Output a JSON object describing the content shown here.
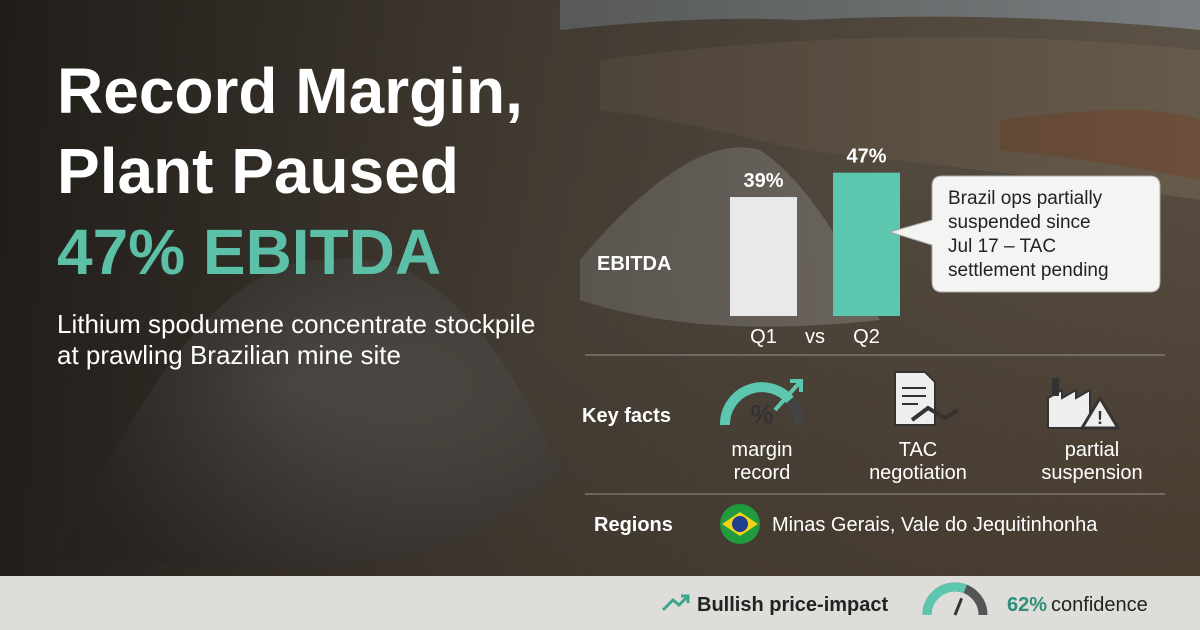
{
  "header": {
    "title": [
      "Record Margin,",
      "Plant Paused"
    ],
    "headline": "47% EBITDA",
    "subtitle": [
      "Lithium spodumene concentrate stockpile",
      "at prawling Brazilian mine site"
    ]
  },
  "chart_data": {
    "type": "bar",
    "label": "EBITDA",
    "categories": [
      "Q1",
      "Q2"
    ],
    "separator": "vs",
    "values": [
      39,
      47
    ],
    "value_labels": [
      "39%",
      "47%"
    ],
    "colors": [
      "#e9e9e9",
      "#5cc6ae"
    ]
  },
  "callout": [
    "Brazil ops partially",
    "suspended since",
    "Jul 17 – TAC",
    "settlement pending"
  ],
  "key_facts": {
    "label": "Key facts",
    "items": [
      [
        "margin",
        "record"
      ],
      [
        "TAC",
        "negotiation"
      ],
      [
        "partial",
        "suspension"
      ]
    ]
  },
  "regions": {
    "label": "Regions",
    "text": "Minas Gerais, Vale do Jequitinhonha"
  },
  "footer": {
    "impact": "Bullish price-impact",
    "confidence": 62,
    "confidence_label": "62%",
    "confidence_text": "confidence"
  }
}
